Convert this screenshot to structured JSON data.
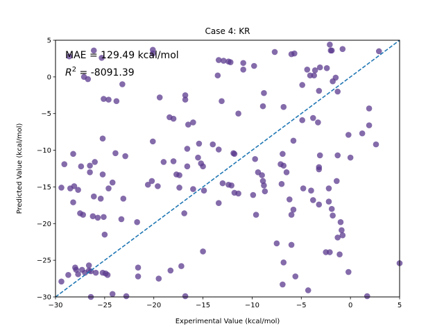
{
  "chart_data": {
    "type": "scatter",
    "title": "Case 4: KR",
    "xlabel": "Experimental Value (kcal/mol)",
    "ylabel": "Predicted Value (kcal/mol)",
    "xlim": [
      -30,
      5
    ],
    "ylim": [
      -30,
      5
    ],
    "xticks": [
      -30,
      -25,
      -20,
      -15,
      -10,
      -5,
      0,
      5
    ],
    "yticks": [
      -30,
      -25,
      -20,
      -15,
      -10,
      -5,
      0,
      5
    ],
    "grid": false,
    "point_color": "#5b3a8e",
    "line_color": "#1f77b4",
    "identity_line": {
      "x": [
        -30,
        5
      ],
      "y": [
        -30,
        5
      ]
    },
    "annotations": {
      "mae": "MAE = 129.49 kcal/mol",
      "r2_symbol": "R",
      "r2_exponent": "2",
      "r2_value": " = -8091.39"
    },
    "points": [
      [
        -28.6,
        2.8
      ],
      [
        -26.1,
        3.6
      ],
      [
        -25.3,
        2.6
      ],
      [
        -20.1,
        3.7
      ],
      [
        -20.1,
        3.2
      ],
      [
        -13.4,
        2.3
      ],
      [
        -12.9,
        2.2
      ],
      [
        -12.4,
        2.1
      ],
      [
        -12.2,
        2.0
      ],
      [
        -10.9,
        1.9
      ],
      [
        -9.8,
        1.5
      ],
      [
        -7.7,
        3.4
      ],
      [
        -6.0,
        3.1
      ],
      [
        -5.7,
        3.2
      ],
      [
        -2.1,
        4.4
      ],
      [
        -2.0,
        3.6
      ],
      [
        -1.9,
        3.6
      ],
      [
        -0.8,
        3.8
      ],
      [
        2.9,
        3.5
      ],
      [
        -27.1,
        0.0
      ],
      [
        -26.7,
        -0.3
      ],
      [
        -23.2,
        -1.0
      ],
      [
        -13.5,
        0.2
      ],
      [
        -10.9,
        1.0
      ],
      [
        -4.4,
        1.0
      ],
      [
        -4.1,
        0.2
      ],
      [
        -3.7,
        0.2
      ],
      [
        -3.6,
        0.9
      ],
      [
        -3.1,
        1.3
      ],
      [
        -2.4,
        1.2
      ],
      [
        -1.5,
        -0.1
      ],
      [
        -1.3,
        -2.0
      ],
      [
        -3.2,
        -1.9
      ],
      [
        -4.9,
        -1.1
      ],
      [
        -1.8,
        -0.6
      ],
      [
        -8.8,
        -2.2
      ],
      [
        -25.1,
        -3.0
      ],
      [
        -24.6,
        -3.1
      ],
      [
        -23.8,
        -3.3
      ],
      [
        -19.4,
        -2.8
      ],
      [
        -16.8,
        -2.5
      ],
      [
        -16.8,
        -3.1
      ],
      [
        -13.1,
        -3.3
      ],
      [
        -11.4,
        -5.0
      ],
      [
        -8.9,
        -4.0
      ],
      [
        -6.8,
        -4.1
      ],
      [
        -3.8,
        -5.6
      ],
      [
        -3.3,
        -6.2
      ],
      [
        -4.9,
        -5.9
      ],
      [
        1.9,
        -4.3
      ],
      [
        -18.4,
        -5.5
      ],
      [
        -18.0,
        -5.7
      ],
      [
        -16.0,
        -6.2
      ],
      [
        -16.5,
        -6.5
      ],
      [
        -20.1,
        -8.8
      ],
      [
        -25.2,
        -8.4
      ],
      [
        -16.6,
        -9.8
      ],
      [
        -15.4,
        -9.1
      ],
      [
        -14.0,
        -9.2
      ],
      [
        -13.4,
        -9.9
      ],
      [
        -5.8,
        -8.7
      ],
      [
        1.2,
        -7.7
      ],
      [
        -0.2,
        -7.9
      ],
      [
        1.9,
        -6.6
      ],
      [
        2.6,
        -9.2
      ],
      [
        -28.2,
        -10.5
      ],
      [
        -23.9,
        -10.4
      ],
      [
        -22.9,
        -10.8
      ],
      [
        -29.1,
        -11.9
      ],
      [
        -27.4,
        -12.2
      ],
      [
        -26.5,
        -12.1
      ],
      [
        -26.0,
        -11.6
      ],
      [
        -26.5,
        -13.0
      ],
      [
        -19.0,
        -11.6
      ],
      [
        -18.0,
        -11.5
      ],
      [
        -17.7,
        -13.3
      ],
      [
        -17.4,
        -13.4
      ],
      [
        -16.6,
        -12.2
      ],
      [
        -15.5,
        -11.0
      ],
      [
        -15.2,
        -11.8
      ],
      [
        -15.0,
        -12.2
      ],
      [
        -11.9,
        -10.4
      ],
      [
        -11.8,
        -10.5
      ],
      [
        -9.7,
        -11.2
      ],
      [
        -9.4,
        -13.0
      ],
      [
        -9.0,
        -13.4
      ],
      [
        -8.9,
        -14.2
      ],
      [
        -7.1,
        -11.9
      ],
      [
        -6.8,
        -12.1
      ],
      [
        -6.5,
        -13.0
      ],
      [
        -6.9,
        -10.5
      ],
      [
        -3.1,
        -10.7
      ],
      [
        -3.2,
        -12.3
      ],
      [
        -3.2,
        -12.6
      ],
      [
        -1.3,
        -10.7
      ],
      [
        0.0,
        -11.0
      ],
      [
        -29.4,
        -15.1
      ],
      [
        -28.5,
        -15.2
      ],
      [
        -28.1,
        -14.9
      ],
      [
        -27.7,
        -15.4
      ],
      [
        -25.2,
        -13.3
      ],
      [
        -24.2,
        -14.4
      ],
      [
        -24.6,
        -15.2
      ],
      [
        -20.6,
        -14.7
      ],
      [
        -20.2,
        -14.2
      ],
      [
        -19.6,
        -14.9
      ],
      [
        -17.4,
        -15.1
      ],
      [
        -16.0,
        -15.3
      ],
      [
        -14.9,
        -15.5
      ],
      [
        -13.0,
        -14.5
      ],
      [
        -12.4,
        -14.7
      ],
      [
        -12.1,
        -14.8
      ],
      [
        -11.8,
        -15.8
      ],
      [
        -11.4,
        -15.9
      ],
      [
        -9.9,
        -16.1
      ],
      [
        -8.8,
        -14.8
      ],
      [
        -8.7,
        -15.6
      ],
      [
        -7.0,
        -14.6
      ],
      [
        -4.8,
        -15.2
      ],
      [
        -4.0,
        -15.5
      ],
      [
        -2.2,
        -15.2
      ],
      [
        -1.4,
        -14.2
      ],
      [
        -28.2,
        -17.1
      ],
      [
        -26.1,
        -16.3
      ],
      [
        -25.4,
        -16.6
      ],
      [
        -23.1,
        -16.6
      ],
      [
        -16.9,
        -18.6
      ],
      [
        -13.4,
        -17.2
      ],
      [
        -9.6,
        -18.8
      ],
      [
        -6.2,
        -16.7
      ],
      [
        -5.8,
        -18.1
      ],
      [
        -6.0,
        -18.8
      ],
      [
        -3.8,
        -16.8
      ],
      [
        -3.2,
        -17.4
      ],
      [
        -2.2,
        -17.0
      ],
      [
        -1.9,
        -18.0
      ],
      [
        -1.8,
        -18.9
      ],
      [
        -27.5,
        -18.6
      ],
      [
        -27.2,
        -18.8
      ],
      [
        -26.2,
        -19.0
      ],
      [
        -25.7,
        -19.2
      ],
      [
        -25.1,
        -19.1
      ],
      [
        -23.3,
        -19.4
      ],
      [
        -21.7,
        -19.8
      ],
      [
        -25.0,
        -21.5
      ],
      [
        -1.0,
        -19.8
      ],
      [
        -0.9,
        -20.9
      ],
      [
        -1.3,
        -21.9
      ],
      [
        -0.8,
        -21.6
      ],
      [
        -15.0,
        -23.8
      ],
      [
        -7.5,
        -22.7
      ],
      [
        -6.0,
        -22.9
      ],
      [
        -2.5,
        -23.9
      ],
      [
        -2.1,
        -23.9
      ],
      [
        -1.1,
        -24.2
      ],
      [
        -28.7,
        -27.0
      ],
      [
        -28.0,
        -26.0
      ],
      [
        -27.9,
        -26.3
      ],
      [
        -27.7,
        -26.9
      ],
      [
        -27.3,
        -26.3
      ],
      [
        -27.0,
        -26.7
      ],
      [
        -26.6,
        -26.4
      ],
      [
        -26.6,
        -25.7
      ],
      [
        -26.4,
        -26.5
      ],
      [
        -25.9,
        -26.7
      ],
      [
        -25.2,
        -26.7
      ],
      [
        -24.9,
        -26.8
      ],
      [
        -24.7,
        -27.0
      ],
      [
        -21.6,
        -27.2
      ],
      [
        -21.6,
        -26.0
      ],
      [
        -19.5,
        -27.5
      ],
      [
        -18.3,
        -26.4
      ],
      [
        -17.2,
        -25.8
      ],
      [
        -6.8,
        -25.3
      ],
      [
        -0.2,
        -26.6
      ],
      [
        5.0,
        -25.4
      ],
      [
        -29.4,
        -27.9
      ],
      [
        -6.9,
        -28.3
      ],
      [
        -4.3,
        -29.1
      ],
      [
        -5.6,
        -27.2
      ],
      [
        -26.4,
        -30.0
      ],
      [
        -24.2,
        -29.6
      ],
      [
        -22.8,
        -29.9
      ],
      [
        -16.8,
        -29.9
      ],
      [
        1.7,
        -29.9
      ]
    ]
  }
}
